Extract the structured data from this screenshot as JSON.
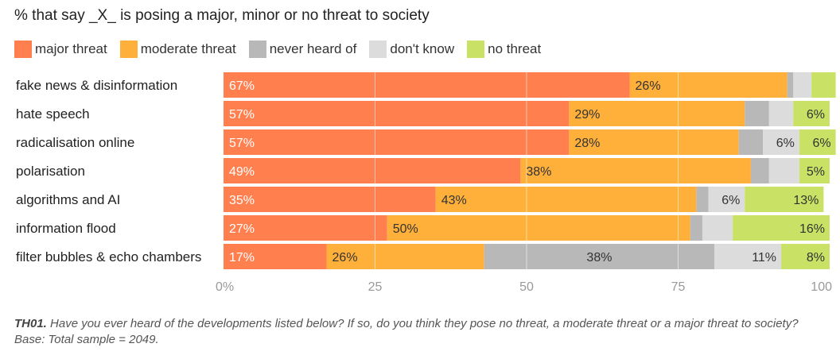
{
  "title": "% that say _X_ is posing a major, minor or no threat to society",
  "footnote": {
    "label": "TH01.",
    "text": " Have you ever heard of the developments listed below? If so, do you think they pose no threat, a moderate threat or a major threat to society? Base: Total sample = 2049."
  },
  "chart_data": {
    "type": "bar",
    "orientation": "horizontal",
    "stacked": true,
    "title": "% that say _X_ is posing a major, minor or no threat to society",
    "categories": [
      "fake news & disinformation",
      "hate speech",
      "radicalisation online",
      "polarisation",
      "algorithms and AI",
      "information flood",
      "filter bubbles & echo chambers"
    ],
    "series": [
      {
        "name": "major threat",
        "color": "#ff7f4f",
        "values": [
          67,
          57,
          57,
          49,
          35,
          27,
          17
        ],
        "labels": [
          "67%",
          "57%",
          "57%",
          "49%",
          "35%",
          "27%",
          "17%"
        ],
        "label_color": "#ffffff"
      },
      {
        "name": "moderate threat",
        "color": "#ffb03b",
        "values": [
          26,
          29,
          28,
          38,
          43,
          50,
          26
        ],
        "labels": [
          "26%",
          "29%",
          "28%",
          "38%",
          "43%",
          "50%",
          "26%"
        ],
        "label_color": "#333333"
      },
      {
        "name": "never heard of",
        "color": "#b8b8b8",
        "values": [
          1,
          4,
          4,
          3,
          2,
          2,
          38
        ],
        "labels": [
          "",
          "",
          "",
          "",
          "",
          "",
          "38%"
        ],
        "label_color": "#333333"
      },
      {
        "name": "don't know",
        "color": "#dcdcdc",
        "values": [
          3,
          4,
          6,
          5,
          6,
          5,
          11
        ],
        "labels": [
          "",
          "",
          "6%",
          "",
          "6%",
          "",
          "11%"
        ],
        "label_color": "#333333"
      },
      {
        "name": "no threat",
        "color": "#c9e265",
        "values": [
          4,
          6,
          6,
          5,
          13,
          16,
          8
        ],
        "labels": [
          "",
          "6%",
          "6%",
          "5%",
          "13%",
          "16%",
          "8%"
        ],
        "label_color": "#333333"
      }
    ],
    "xlim": [
      0,
      100
    ],
    "xticks": [
      0,
      25,
      50,
      75,
      100
    ],
    "xtick_labels": [
      "0%",
      "25",
      "50",
      "75",
      "100"
    ],
    "xlabel": "",
    "ylabel": "",
    "grid": true,
    "legend": "top-left"
  }
}
